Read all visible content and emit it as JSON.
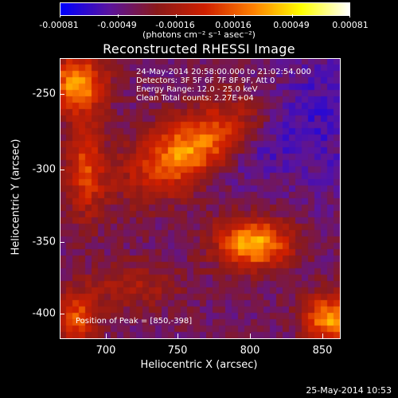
{
  "colorbar": {
    "ticks": [
      "-0.00081",
      "-0.00049",
      "-0.00016",
      "0.00016",
      "0.00049",
      "0.00081"
    ],
    "units": "(photons cm⁻² s⁻¹ asec⁻²)",
    "colors": [
      "#0000ff",
      "#5a14a0",
      "#8b1a1a",
      "#d02000",
      "#ff8000",
      "#ffff00",
      "#ffffff"
    ]
  },
  "plot": {
    "title": "Reconstructed RHESSI Image",
    "xlabel": "Heliocentric X (arcsec)",
    "ylabel": "Heliocentric Y (arcsec)",
    "xticks": [
      "700",
      "750",
      "800",
      "850"
    ],
    "yticks": [
      "-250",
      "-300",
      "-350",
      "-400"
    ]
  },
  "info": {
    "time": "24-May-2014 20:58:00.000 to 21:02:54.000",
    "detectors": "Detectors: 3F 5F 6F 7F 8F 9F, Att 0",
    "energy": "Energy Range: 12.0 - 25.0 keV",
    "clean": "Clean      Total counts: 2.27E+04",
    "peak": "Position of Peak = [850,-398]"
  },
  "footer": {
    "date": "25-May-2014 10:53"
  }
}
